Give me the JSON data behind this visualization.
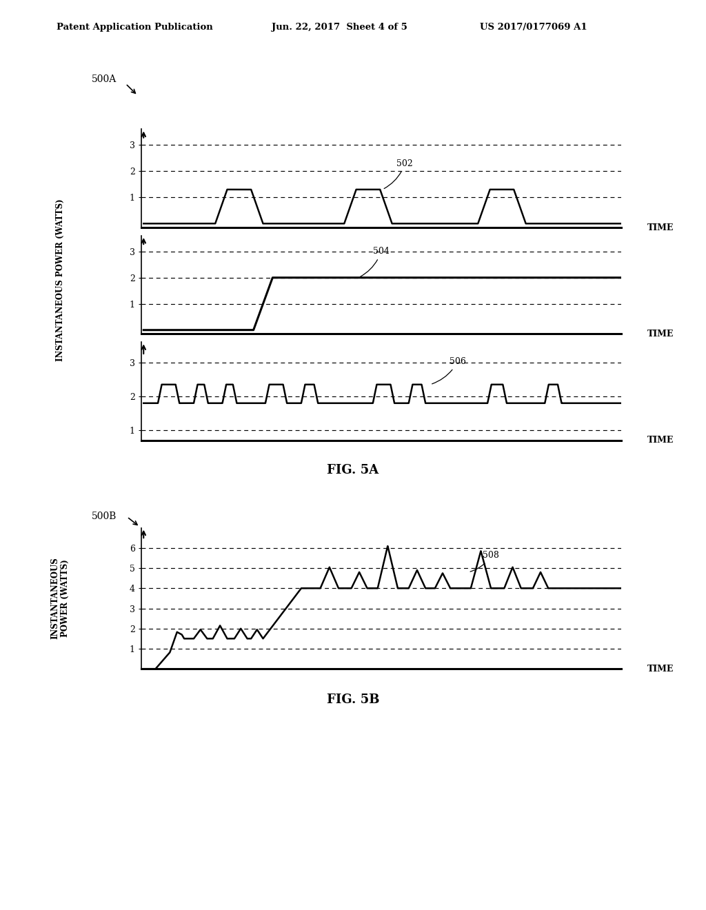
{
  "background_color": "#ffffff",
  "header_left": "Patent Application Publication",
  "header_center": "Jun. 22, 2017  Sheet 4 of 5",
  "header_right": "US 2017/0177069 A1",
  "fig5a_label": "500A",
  "fig5b_label": "500B",
  "fig5a_caption": "FIG. 5A",
  "fig5b_caption": "FIG. 5B",
  "ylabel": "INSTANTANEOUS POWER (WATTS)",
  "xlabel": "TIME",
  "label_502": "502",
  "label_504": "504",
  "label_506": "506",
  "label_508": "508",
  "plot1_yticks": [
    1,
    2,
    3
  ],
  "plot1_ylim": [
    -0.15,
    3.6
  ],
  "plot2_yticks": [
    1,
    2,
    3
  ],
  "plot2_ylim": [
    -0.15,
    3.6
  ],
  "plot3_yticks": [
    1,
    2,
    3
  ],
  "plot3_ylim": [
    0.7,
    3.6
  ],
  "plot4_yticks": [
    1,
    2,
    3,
    4,
    5,
    6
  ],
  "plot4_ylim": [
    0.0,
    7.0
  ]
}
